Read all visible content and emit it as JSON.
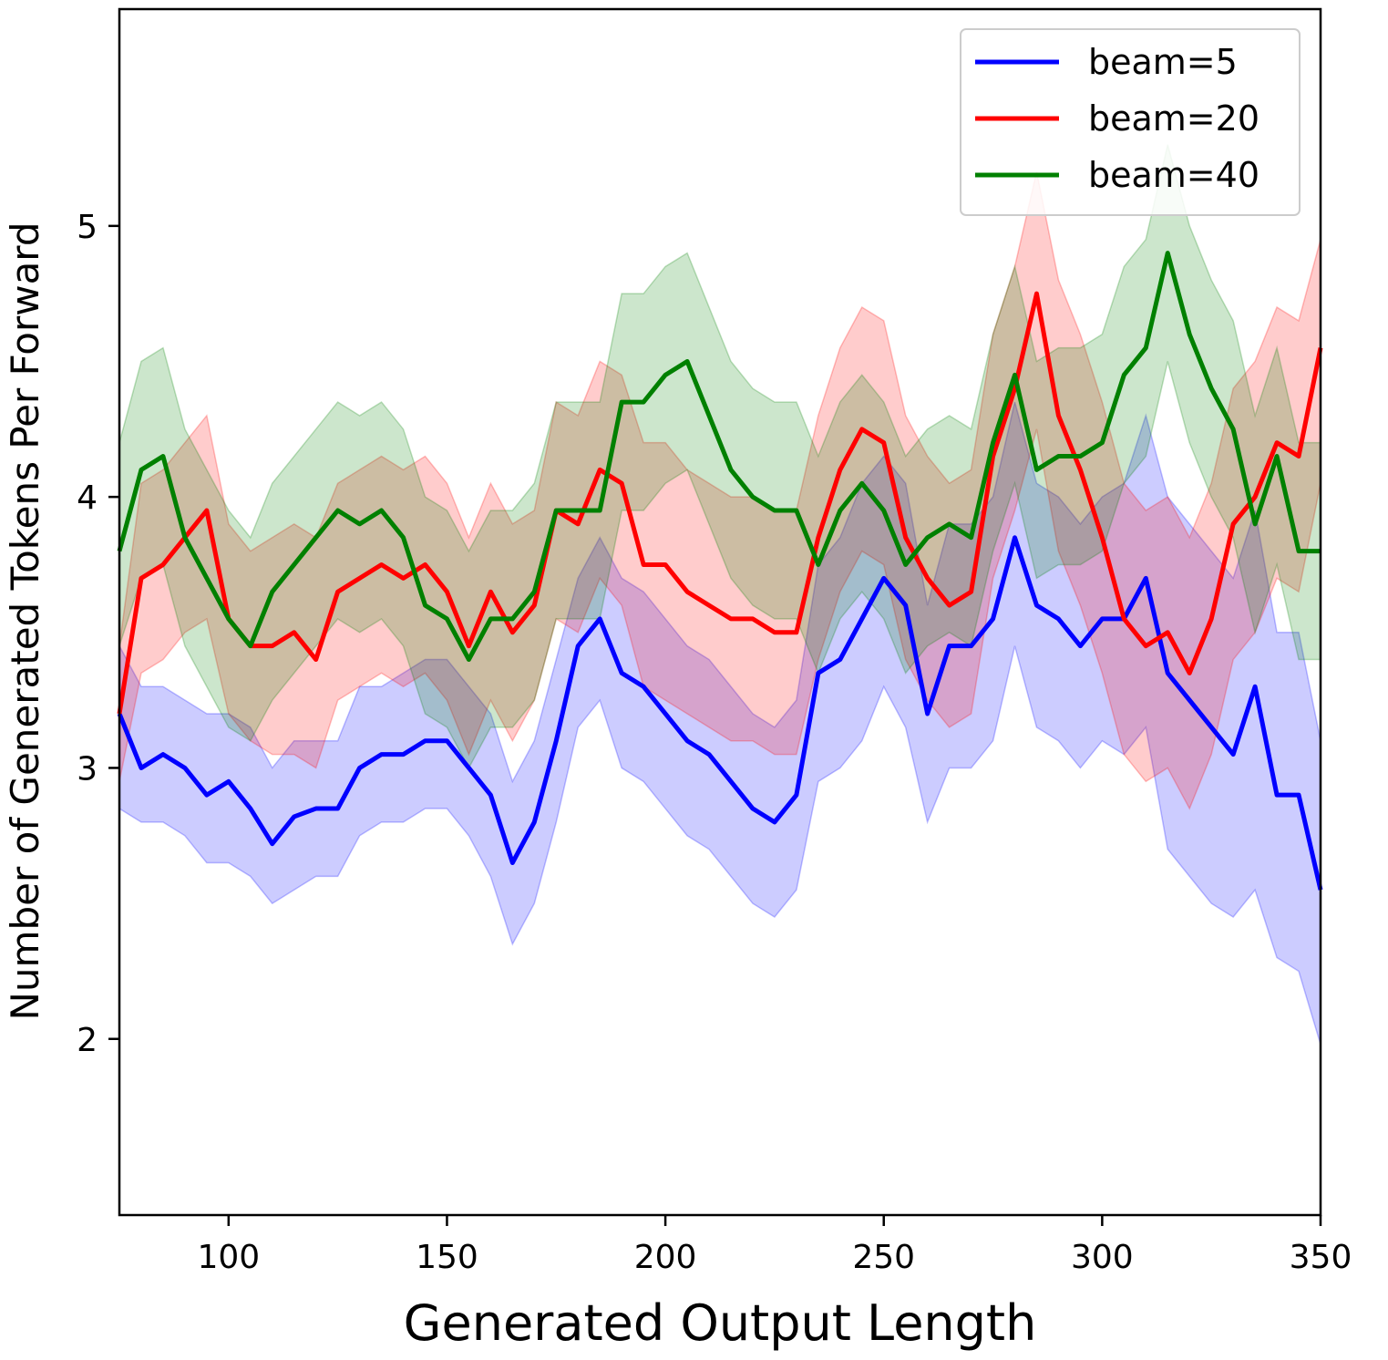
{
  "chart_data": {
    "type": "line",
    "xlabel": "Generated Output Length",
    "ylabel": "Number of Generated Tokens Per Forward",
    "xlim": [
      75,
      350
    ],
    "ylim": [
      1.35,
      5.8
    ],
    "xticks": [
      100,
      150,
      200,
      250,
      300,
      350
    ],
    "yticks": [
      2,
      3,
      4,
      5
    ],
    "grid": false,
    "legend_position": "top-right",
    "x": [
      75,
      80,
      85,
      90,
      95,
      100,
      105,
      110,
      115,
      120,
      125,
      130,
      135,
      140,
      145,
      150,
      155,
      160,
      165,
      170,
      175,
      180,
      185,
      190,
      195,
      200,
      205,
      210,
      215,
      220,
      225,
      230,
      235,
      240,
      245,
      250,
      255,
      260,
      265,
      270,
      275,
      280,
      285,
      290,
      295,
      300,
      305,
      310,
      315,
      320,
      325,
      330,
      335,
      340,
      345,
      350
    ],
    "series": [
      {
        "name": "beam=5",
        "color": "#0000ff",
        "values": [
          3.2,
          3.0,
          3.05,
          3.0,
          2.9,
          2.95,
          2.85,
          2.72,
          2.82,
          2.85,
          2.85,
          3.0,
          3.05,
          3.05,
          3.1,
          3.1,
          3.0,
          2.9,
          2.65,
          2.8,
          3.1,
          3.45,
          3.55,
          3.35,
          3.3,
          3.2,
          3.1,
          3.05,
          2.95,
          2.85,
          2.8,
          2.9,
          3.35,
          3.4,
          3.55,
          3.7,
          3.6,
          3.2,
          3.45,
          3.45,
          3.55,
          3.85,
          3.6,
          3.55,
          3.45,
          3.55,
          3.55,
          3.7,
          3.35,
          3.25,
          3.15,
          3.05,
          3.3,
          2.9,
          2.9,
          2.55
        ],
        "lower": [
          2.85,
          2.8,
          2.8,
          2.75,
          2.65,
          2.65,
          2.6,
          2.5,
          2.55,
          2.6,
          2.6,
          2.75,
          2.8,
          2.8,
          2.85,
          2.85,
          2.75,
          2.6,
          2.35,
          2.5,
          2.8,
          3.15,
          3.25,
          3.0,
          2.95,
          2.85,
          2.75,
          2.7,
          2.6,
          2.5,
          2.45,
          2.55,
          2.95,
          3.0,
          3.1,
          3.3,
          3.15,
          2.8,
          3.0,
          3.0,
          3.1,
          3.45,
          3.15,
          3.1,
          3.0,
          3.1,
          3.05,
          3.15,
          2.7,
          2.6,
          2.5,
          2.45,
          2.55,
          2.3,
          2.25,
          1.98
        ],
        "upper": [
          3.45,
          3.3,
          3.3,
          3.25,
          3.2,
          3.2,
          3.15,
          3.0,
          3.1,
          3.1,
          3.1,
          3.3,
          3.3,
          3.35,
          3.4,
          3.4,
          3.3,
          3.2,
          2.95,
          3.1,
          3.4,
          3.7,
          3.85,
          3.7,
          3.65,
          3.55,
          3.45,
          3.4,
          3.3,
          3.2,
          3.15,
          3.25,
          3.75,
          3.85,
          4.05,
          4.15,
          4.05,
          3.6,
          3.9,
          3.9,
          4.0,
          4.35,
          4.05,
          4.0,
          3.9,
          4.0,
          4.05,
          4.3,
          4.0,
          3.9,
          3.8,
          3.7,
          3.95,
          3.5,
          3.5,
          3.1
        ]
      },
      {
        "name": "beam=20",
        "color": "#ff0000",
        "values": [
          3.2,
          3.7,
          3.75,
          3.85,
          3.95,
          3.55,
          3.45,
          3.45,
          3.5,
          3.4,
          3.65,
          3.7,
          3.75,
          3.7,
          3.75,
          3.65,
          3.45,
          3.65,
          3.5,
          3.6,
          3.95,
          3.9,
          4.1,
          4.05,
          3.75,
          3.75,
          3.65,
          3.6,
          3.55,
          3.55,
          3.5,
          3.5,
          3.85,
          4.1,
          4.25,
          4.2,
          3.85,
          3.7,
          3.6,
          3.65,
          4.15,
          4.4,
          4.75,
          4.3,
          4.1,
          3.85,
          3.55,
          3.45,
          3.5,
          3.35,
          3.55,
          3.9,
          4.0,
          4.2,
          4.15,
          4.55
        ],
        "lower": [
          2.95,
          3.35,
          3.4,
          3.5,
          3.55,
          3.2,
          3.1,
          3.05,
          3.05,
          3.0,
          3.25,
          3.3,
          3.35,
          3.3,
          3.35,
          3.25,
          3.05,
          3.25,
          3.1,
          3.25,
          3.55,
          3.5,
          3.7,
          3.6,
          3.3,
          3.25,
          3.2,
          3.15,
          3.1,
          3.1,
          3.05,
          3.05,
          3.4,
          3.65,
          3.8,
          3.75,
          3.4,
          3.25,
          3.15,
          3.2,
          3.7,
          3.95,
          4.25,
          3.8,
          3.6,
          3.35,
          3.05,
          2.95,
          3.0,
          2.85,
          3.05,
          3.4,
          3.5,
          3.7,
          3.65,
          4.05
        ],
        "upper": [
          3.45,
          4.05,
          4.1,
          4.2,
          4.3,
          3.9,
          3.8,
          3.85,
          3.9,
          3.85,
          4.05,
          4.1,
          4.15,
          4.1,
          4.15,
          4.05,
          3.85,
          4.05,
          3.9,
          3.95,
          4.35,
          4.3,
          4.5,
          4.45,
          4.2,
          4.2,
          4.1,
          4.05,
          4.0,
          4.0,
          3.95,
          3.95,
          4.3,
          4.55,
          4.7,
          4.65,
          4.3,
          4.15,
          4.05,
          4.1,
          4.6,
          4.85,
          5.2,
          4.8,
          4.6,
          4.35,
          4.05,
          3.95,
          4.0,
          3.85,
          4.05,
          4.4,
          4.5,
          4.7,
          4.65,
          4.95
        ]
      },
      {
        "name": "beam=40",
        "color": "#008000",
        "values": [
          3.8,
          4.1,
          4.15,
          3.85,
          3.7,
          3.55,
          3.45,
          3.65,
          3.75,
          3.85,
          3.95,
          3.9,
          3.95,
          3.85,
          3.6,
          3.55,
          3.4,
          3.55,
          3.55,
          3.65,
          3.95,
          3.95,
          3.95,
          4.35,
          4.35,
          4.45,
          4.5,
          4.3,
          4.1,
          4.0,
          3.95,
          3.95,
          3.75,
          3.95,
          4.05,
          3.95,
          3.75,
          3.85,
          3.9,
          3.85,
          4.2,
          4.45,
          4.1,
          4.15,
          4.15,
          4.2,
          4.45,
          4.55,
          4.9,
          4.6,
          4.4,
          4.25,
          3.9,
          4.15,
          3.8,
          3.8
        ],
        "lower": [
          3.45,
          3.7,
          3.75,
          3.45,
          3.3,
          3.15,
          3.1,
          3.25,
          3.35,
          3.45,
          3.55,
          3.5,
          3.55,
          3.45,
          3.2,
          3.15,
          3.0,
          3.15,
          3.15,
          3.25,
          3.55,
          3.55,
          3.55,
          3.95,
          3.95,
          4.05,
          4.1,
          3.9,
          3.7,
          3.6,
          3.55,
          3.55,
          3.35,
          3.55,
          3.65,
          3.55,
          3.35,
          3.45,
          3.5,
          3.45,
          3.8,
          4.05,
          3.7,
          3.75,
          3.75,
          3.8,
          4.05,
          4.15,
          4.5,
          4.2,
          4.0,
          3.85,
          3.5,
          3.75,
          3.4,
          3.4
        ],
        "upper": [
          4.2,
          4.5,
          4.55,
          4.25,
          4.1,
          3.95,
          3.85,
          4.05,
          4.15,
          4.25,
          4.35,
          4.3,
          4.35,
          4.25,
          4.0,
          3.95,
          3.8,
          3.95,
          3.95,
          4.05,
          4.35,
          4.35,
          4.35,
          4.75,
          4.75,
          4.85,
          4.9,
          4.7,
          4.5,
          4.4,
          4.35,
          4.35,
          4.15,
          4.35,
          4.45,
          4.35,
          4.15,
          4.25,
          4.3,
          4.25,
          4.6,
          4.85,
          4.5,
          4.55,
          4.55,
          4.6,
          4.85,
          4.95,
          5.3,
          5.0,
          4.8,
          4.65,
          4.3,
          4.55,
          4.2,
          4.2
        ]
      }
    ]
  }
}
